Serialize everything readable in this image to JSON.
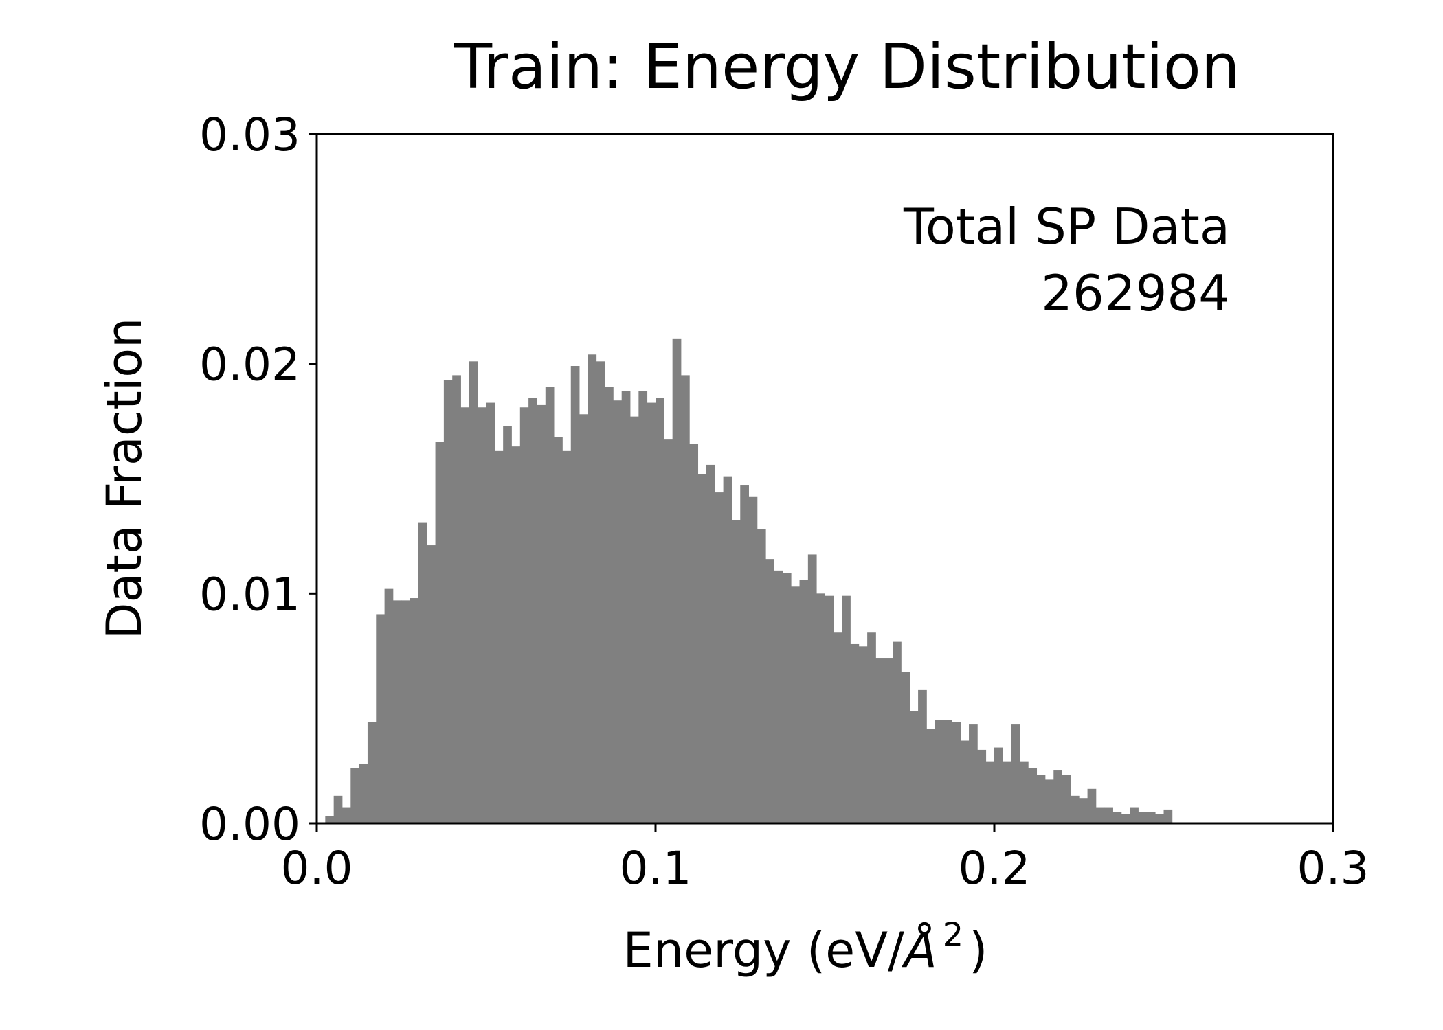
{
  "chart_data": {
    "type": "bar",
    "title": "Train: Energy Distribution",
    "xlabel": "Energy (eV/Å²)",
    "xlabel_parts": {
      "prefix": "Energy (eV/",
      "symbol": "Å",
      "sup": "2",
      "suffix": ")"
    },
    "ylabel": "Data Fraction",
    "xlim": [
      0.0,
      0.3
    ],
    "ylim": [
      0.0,
      0.03
    ],
    "x_ticks": [
      "0.0",
      "0.1",
      "0.2",
      "0.3"
    ],
    "y_ticks": [
      "0.00",
      "0.01",
      "0.02",
      "0.03"
    ],
    "bar_color": "#808080",
    "bin_width": 0.0025,
    "bin_start": 0.0025,
    "annotation": {
      "line1": "Total SP Data",
      "line2": "262984",
      "position": "top-right"
    },
    "values": [
      0.0003,
      0.0012,
      0.0007,
      0.0024,
      0.0026,
      0.0044,
      0.0091,
      0.0102,
      0.0097,
      0.0097,
      0.0098,
      0.0131,
      0.0121,
      0.0166,
      0.0193,
      0.0195,
      0.0181,
      0.0201,
      0.0181,
      0.0183,
      0.0162,
      0.0173,
      0.0164,
      0.0181,
      0.0185,
      0.0182,
      0.019,
      0.0168,
      0.0162,
      0.0199,
      0.0178,
      0.0204,
      0.0201,
      0.019,
      0.0184,
      0.0188,
      0.0177,
      0.0188,
      0.0183,
      0.0185,
      0.0167,
      0.0211,
      0.0195,
      0.0165,
      0.0152,
      0.0156,
      0.0144,
      0.0151,
      0.0132,
      0.0147,
      0.0142,
      0.0128,
      0.0115,
      0.011,
      0.0109,
      0.0103,
      0.0106,
      0.0117,
      0.01,
      0.0099,
      0.0083,
      0.0099,
      0.0078,
      0.0077,
      0.0083,
      0.0072,
      0.0072,
      0.0079,
      0.0066,
      0.0049,
      0.0058,
      0.0041,
      0.0045,
      0.0045,
      0.0044,
      0.0036,
      0.0043,
      0.0032,
      0.0027,
      0.0033,
      0.0027,
      0.0043,
      0.0027,
      0.0024,
      0.0021,
      0.0019,
      0.0023,
      0.0021,
      0.0012,
      0.0011,
      0.0015,
      0.0007,
      0.0007,
      0.0005,
      0.0004,
      0.0007,
      0.0005,
      0.0005,
      0.0004,
      0.0006
    ]
  }
}
